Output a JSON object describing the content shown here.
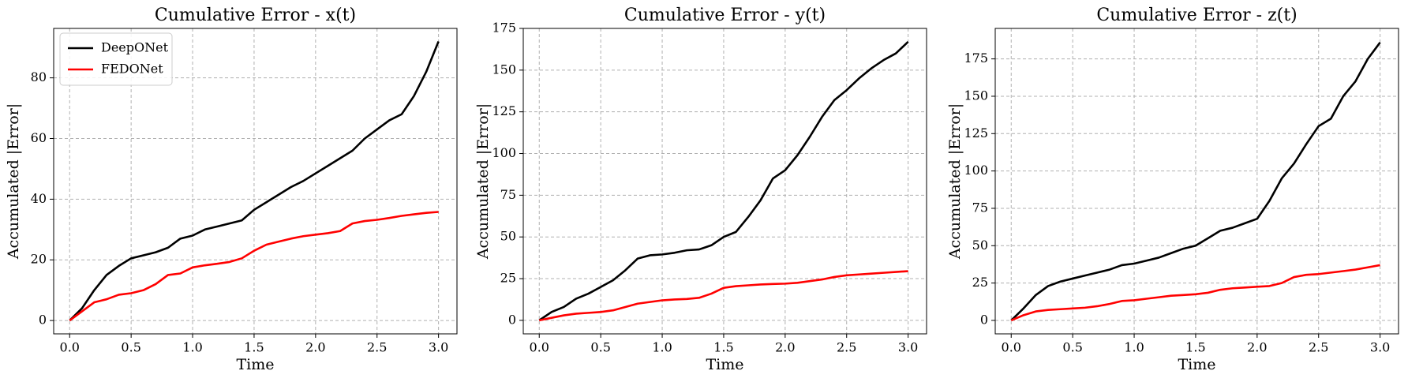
{
  "chart_data": [
    {
      "type": "line",
      "title": "Cumulative Error - x(t)",
      "x_label": "Time",
      "y_label": "Accumulated |Error|",
      "x": [
        0,
        0.1,
        0.2,
        0.3,
        0.4,
        0.5,
        0.6,
        0.7,
        0.8,
        0.9,
        1.0,
        1.1,
        1.2,
        1.3,
        1.4,
        1.5,
        1.6,
        1.7,
        1.8,
        1.9,
        2.0,
        2.1,
        2.2,
        2.3,
        2.4,
        2.5,
        2.6,
        2.7,
        2.8,
        2.9,
        3.0
      ],
      "series": [
        {
          "name": "DeepONet",
          "color": "#000000",
          "values": [
            0,
            4,
            10,
            15,
            18,
            20.5,
            21.5,
            22.5,
            24,
            27,
            28,
            30,
            31,
            32,
            33,
            36.5,
            39,
            41.5,
            44,
            46,
            48.5,
            51,
            53.5,
            56,
            60,
            63,
            66,
            68,
            74,
            82,
            92
          ]
        },
        {
          "name": "FEDONet",
          "color": "#ff0000",
          "values": [
            0,
            3,
            6,
            7,
            8.5,
            9,
            10,
            12,
            15,
            15.5,
            17.5,
            18.2,
            18.7,
            19.3,
            20.5,
            23,
            25,
            26,
            27,
            27.8,
            28.3,
            28.8,
            29.5,
            32,
            32.8,
            33.2,
            33.8,
            34.5,
            35,
            35.5,
            35.8
          ]
        }
      ],
      "xlim": [
        -0.13,
        3.15
      ],
      "xticks": [
        {
          "value": 0,
          "label": "0.0"
        },
        0.5,
        {
          "value": 1,
          "label": "1.0"
        },
        1.5,
        {
          "value": 2,
          "label": "2.0"
        },
        2.5,
        {
          "value": 3,
          "label": "3.0"
        }
      ],
      "ylim": [
        -4.4,
        96.3
      ],
      "yticks": [
        0,
        20,
        40,
        60,
        80
      ],
      "grid": true,
      "legend": "upper left"
    },
    {
      "type": "line",
      "title": "Cumulative Error - y(t)",
      "x_label": "Time",
      "y_label": "Accumulated |Error|",
      "x": [
        0,
        0.1,
        0.2,
        0.3,
        0.4,
        0.5,
        0.6,
        0.7,
        0.8,
        0.9,
        1.0,
        1.1,
        1.2,
        1.3,
        1.4,
        1.5,
        1.6,
        1.7,
        1.8,
        1.9,
        2.0,
        2.1,
        2.2,
        2.3,
        2.4,
        2.5,
        2.6,
        2.7,
        2.8,
        2.9,
        3.0
      ],
      "series": [
        {
          "color": "#000000",
          "values": [
            0,
            5,
            8,
            13,
            16,
            20,
            24,
            30,
            37,
            39,
            39.5,
            40.5,
            42,
            42.5,
            45,
            50,
            53,
            62,
            72,
            85,
            90,
            99,
            110,
            122,
            132,
            138,
            145,
            151,
            156,
            160,
            167
          ]
        },
        {
          "color": "#ff0000",
          "values": [
            0,
            1.5,
            3,
            4,
            4.5,
            5,
            6,
            8,
            10,
            11,
            12,
            12.5,
            12.8,
            13.5,
            16,
            19.5,
            20.5,
            21,
            21.5,
            21.8,
            22,
            22.5,
            23.5,
            24.5,
            26,
            27,
            27.5,
            28,
            28.5,
            29,
            29.5
          ]
        }
      ],
      "xlim": [
        -0.13,
        3.15
      ],
      "xticks": [
        {
          "value": 0,
          "label": "0.0"
        },
        0.5,
        {
          "value": 1,
          "label": "1.0"
        },
        1.5,
        {
          "value": 2,
          "label": "2.0"
        },
        2.5,
        {
          "value": 3,
          "label": "3.0"
        }
      ],
      "ylim": [
        -8.1,
        175
      ],
      "yticks": [
        0,
        25,
        50,
        75,
        100,
        125,
        150,
        175
      ],
      "grid": true
    },
    {
      "type": "line",
      "title": "Cumulative Error - z(t)",
      "x_label": "Time",
      "y_label": "Accumulated |Error|",
      "x": [
        0,
        0.1,
        0.2,
        0.3,
        0.4,
        0.5,
        0.6,
        0.7,
        0.8,
        0.9,
        1.0,
        1.1,
        1.2,
        1.3,
        1.4,
        1.5,
        1.6,
        1.7,
        1.8,
        1.9,
        2.0,
        2.1,
        2.2,
        2.3,
        2.4,
        2.5,
        2.6,
        2.7,
        2.8,
        2.9,
        3.0
      ],
      "series": [
        {
          "color": "#000000",
          "values": [
            0,
            8,
            17,
            23,
            26,
            28,
            30,
            32,
            34,
            37,
            38,
            40,
            42,
            45,
            48,
            50,
            55,
            60,
            62,
            65,
            68,
            80,
            95,
            105,
            118,
            130,
            135,
            150,
            160,
            175,
            186
          ]
        },
        {
          "color": "#ff0000",
          "values": [
            0,
            3.5,
            6,
            7,
            7.5,
            8,
            8.5,
            9.5,
            11,
            13,
            13.5,
            14.5,
            15.5,
            16.5,
            17,
            17.5,
            18.5,
            20.5,
            21.5,
            22,
            22.5,
            23,
            25,
            29,
            30.5,
            31,
            32,
            33,
            34,
            35.5,
            37
          ]
        }
      ],
      "xlim": [
        -0.13,
        3.15
      ],
      "xticks": [
        {
          "value": 0,
          "label": "0.0"
        },
        0.5,
        {
          "value": 1,
          "label": "1.0"
        },
        1.5,
        {
          "value": 2,
          "label": "2.0"
        },
        2.5,
        {
          "value": 3,
          "label": "3.0"
        }
      ],
      "ylim": [
        -9,
        195.4
      ],
      "yticks": [
        0,
        25,
        50,
        75,
        100,
        125,
        150,
        175
      ],
      "grid": true
    }
  ]
}
